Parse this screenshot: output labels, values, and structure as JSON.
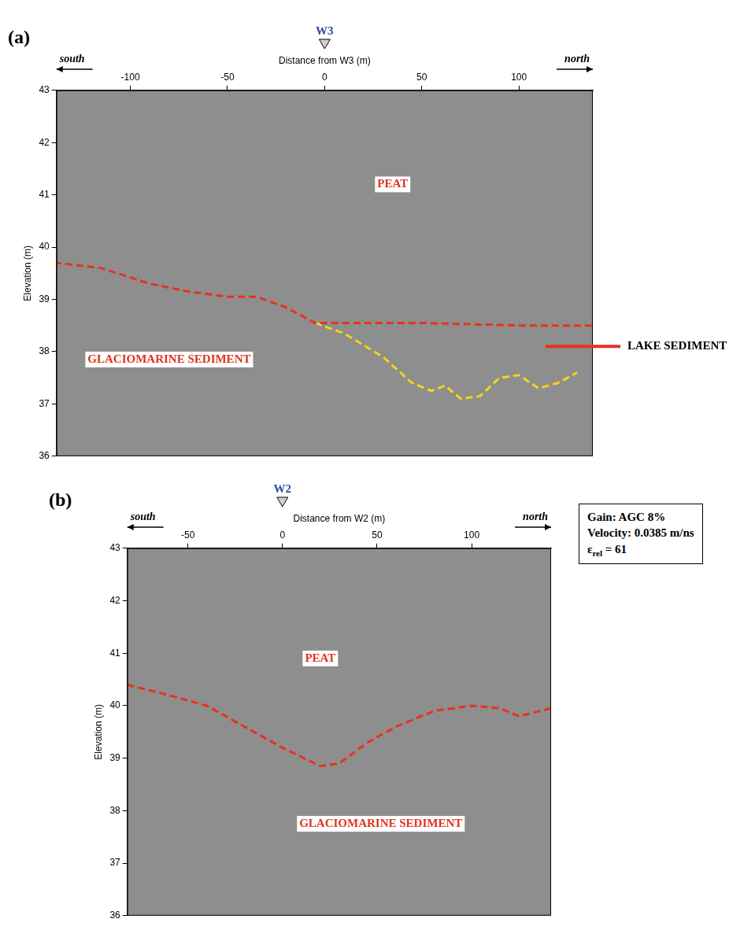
{
  "chart_data": [
    {
      "type": "line",
      "title": "(a)",
      "x_label": "Distance from W3 (m)",
      "y_label": "Elevation (m)",
      "xlim": [
        -138,
        138
      ],
      "xticks": [
        -100,
        -50,
        0,
        50,
        100
      ],
      "ylim": [
        36,
        43
      ],
      "yticks": [
        36,
        37,
        38,
        39,
        40,
        41,
        42,
        43
      ],
      "grid": false,
      "directions": {
        "left": "south",
        "right": "north"
      },
      "markers": [
        {
          "label": "W3",
          "x": 0
        }
      ],
      "series": [
        {
          "color": "#e8321e",
          "line_style": "dashed",
          "x": [
            -138,
            -138,
            -115,
            -90,
            -70,
            -50,
            -35,
            -20,
            -5,
            10,
            50,
            100,
            138
          ],
          "values": [
            39.95,
            39.7,
            39.6,
            39.3,
            39.15,
            39.05,
            39.05,
            38.85,
            38.55,
            38.55,
            38.55,
            38.5,
            38.5
          ]
        },
        {
          "color": "#f5d31c",
          "line_style": "dashed",
          "x": [
            -5,
            10,
            30,
            45,
            55,
            62,
            70,
            80,
            90,
            100,
            110,
            120,
            130
          ],
          "values": [
            38.55,
            38.35,
            37.9,
            37.4,
            37.25,
            37.35,
            37.1,
            37.15,
            37.5,
            37.55,
            37.3,
            37.4,
            37.6
          ]
        }
      ],
      "annotations": [
        {
          "text": "PEAT",
          "x": 35,
          "y": 41.2,
          "color": "#e0321c"
        },
        {
          "text": "GLACIOMARINE SEDIMENT",
          "x": -80,
          "y": 37.85,
          "color": "#e0321c"
        }
      ],
      "side_label": {
        "text": "LAKE SEDIMENT",
        "y": 38.1,
        "color": "#e8321e"
      }
    },
    {
      "type": "line",
      "title": "(b)",
      "x_label": "Distance from W2 (m)",
      "y_label": "Elevation (m)",
      "xlim": [
        -82,
        142
      ],
      "xticks": [
        -50,
        0,
        50,
        100
      ],
      "ylim": [
        36,
        43
      ],
      "yticks": [
        36,
        37,
        38,
        39,
        40,
        41,
        42,
        43
      ],
      "grid": false,
      "directions": {
        "left": "south",
        "right": "north"
      },
      "markers": [
        {
          "label": "W2",
          "x": 0
        }
      ],
      "series": [
        {
          "color": "#e8321e",
          "line_style": "dashed",
          "x": [
            -82,
            -60,
            -40,
            -20,
            0,
            20,
            30,
            45,
            60,
            80,
            100,
            115,
            125,
            142
          ],
          "values": [
            40.4,
            40.2,
            40.0,
            39.6,
            39.2,
            38.85,
            38.9,
            39.3,
            39.6,
            39.9,
            40.0,
            39.95,
            39.8,
            39.95
          ]
        }
      ],
      "annotations": [
        {
          "text": "PEAT",
          "x": 20,
          "y": 40.9,
          "color": "#e0321c"
        },
        {
          "text": "GLACIOMARINE SEDIMENT",
          "x": 52,
          "y": 37.75,
          "color": "#e0321c"
        }
      ]
    }
  ],
  "info_box": {
    "lines": [
      "Gain: AGC 8%",
      "Velocity: 0.0385 m/ns"
    ],
    "permittivity": {
      "symbol": "ε",
      "subscript": "rel",
      "text": " = 61"
    }
  }
}
